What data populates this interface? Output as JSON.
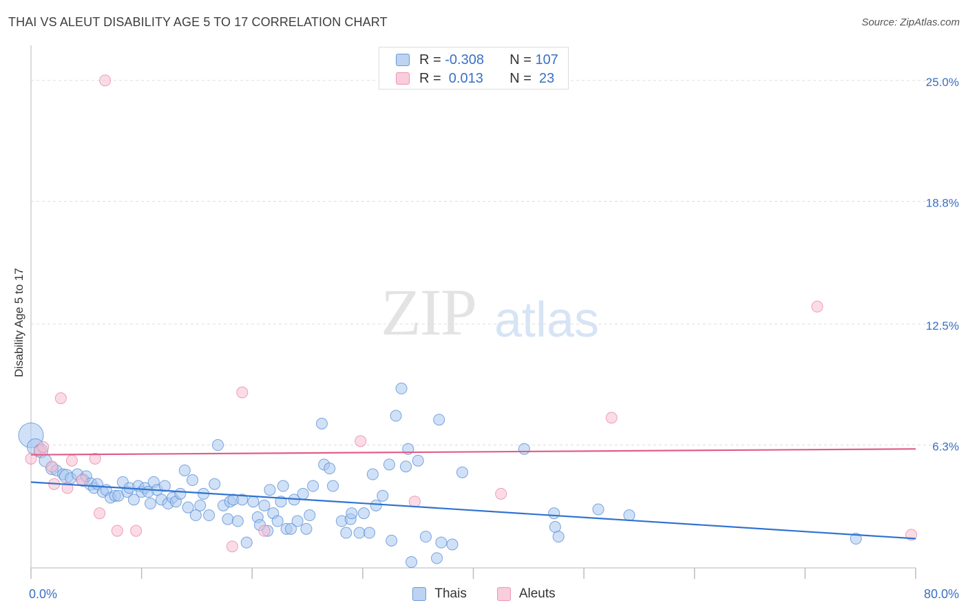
{
  "header": {
    "title": "THAI VS ALEUT DISABILITY AGE 5 TO 17 CORRELATION CHART",
    "source": "Source: ZipAtlas.com"
  },
  "watermark": {
    "zip": "ZIP",
    "atlas": "atlas"
  },
  "legend_top": {
    "rows": [
      {
        "r_label": "R =",
        "r_value": "-0.308",
        "n_label": "N =",
        "n_value": "107"
      },
      {
        "r_label": "R =",
        "r_value": " 0.013",
        "n_label": "N =",
        "n_value": " 23"
      }
    ]
  },
  "colors": {
    "thais_fill": "#a9c8f0",
    "thais_stroke": "#5b8fd6",
    "thais_line": "#2f72d0",
    "aleuts_fill": "#f7c0d2",
    "aleuts_stroke": "#e98aa8",
    "aleuts_line": "#e05d88",
    "tick_label": "#3a6fc4",
    "grid": "#dddddd"
  },
  "chart_data": {
    "type": "scatter",
    "title": "THAI VS ALEUT DISABILITY AGE 5 TO 17 CORRELATION CHART",
    "xlabel": "",
    "ylabel": "Disability Age 5 to 17",
    "xlim": [
      0,
      80
    ],
    "ylim": [
      0,
      26.3
    ],
    "x_tick_labels": [
      "0.0%",
      "80.0%"
    ],
    "y_ticks": [
      6.3,
      12.5,
      18.8,
      25.0
    ],
    "y_tick_labels": [
      "6.3%",
      "12.5%",
      "18.8%",
      "25.0%"
    ],
    "grid": true,
    "legend_position": "bottom",
    "series": [
      {
        "name": "Thais",
        "r": -0.308,
        "n": 107,
        "trend": {
          "x": [
            0,
            80
          ],
          "y": [
            4.4,
            1.5
          ]
        },
        "points": [
          [
            0,
            6.8,
            18
          ],
          [
            0.4,
            6.2,
            12
          ],
          [
            0.9,
            6,
            10
          ],
          [
            1.3,
            5.5,
            9
          ],
          [
            1.9,
            5.1,
            9
          ],
          [
            2.3,
            5,
            8
          ],
          [
            2.9,
            4.8,
            8
          ],
          [
            3.2,
            4.7,
            10
          ],
          [
            3.6,
            4.6,
            8
          ],
          [
            4.2,
            4.8,
            8
          ],
          [
            4.7,
            4.5,
            9
          ],
          [
            5,
            4.7,
            8
          ],
          [
            5.4,
            4.3,
            9
          ],
          [
            5.7,
            4.1,
            8
          ],
          [
            6,
            4.3,
            8
          ],
          [
            6.5,
            3.9,
            8
          ],
          [
            6.8,
            4,
            8
          ],
          [
            7.2,
            3.6,
            8
          ],
          [
            7.6,
            3.7,
            8
          ],
          [
            7.9,
            3.7,
            8
          ],
          [
            8.3,
            4.4,
            8
          ],
          [
            8.7,
            3.9,
            8
          ],
          [
            8.9,
            4.1,
            8
          ],
          [
            9.3,
            3.5,
            8
          ],
          [
            9.7,
            4.2,
            8
          ],
          [
            10,
            3.9,
            8
          ],
          [
            10.3,
            4.1,
            8
          ],
          [
            10.6,
            3.9,
            8
          ],
          [
            10.8,
            3.3,
            8
          ],
          [
            11.1,
            4.4,
            8
          ],
          [
            11.4,
            4,
            8
          ],
          [
            11.8,
            3.5,
            8
          ],
          [
            12.1,
            4.2,
            8
          ],
          [
            12.4,
            3.3,
            8
          ],
          [
            12.8,
            3.6,
            8
          ],
          [
            13.1,
            3.4,
            8
          ],
          [
            13.5,
            3.8,
            8
          ],
          [
            13.9,
            5,
            8
          ],
          [
            14.2,
            3.1,
            8
          ],
          [
            14.6,
            4.5,
            8
          ],
          [
            14.9,
            2.7,
            8
          ],
          [
            15.3,
            3.2,
            8
          ],
          [
            15.6,
            3.8,
            8
          ],
          [
            16.1,
            2.7,
            8
          ],
          [
            16.6,
            4.3,
            8
          ],
          [
            16.9,
            6.3,
            8
          ],
          [
            17.4,
            3.2,
            8
          ],
          [
            17.8,
            2.5,
            8
          ],
          [
            18,
            3.4,
            8
          ],
          [
            18.3,
            3.5,
            8
          ],
          [
            18.7,
            2.4,
            8
          ],
          [
            19.1,
            3.5,
            8
          ],
          [
            19.5,
            1.3,
            8
          ],
          [
            20.1,
            3.4,
            8
          ],
          [
            20.5,
            2.6,
            8
          ],
          [
            20.7,
            2.2,
            8
          ],
          [
            21.1,
            3.2,
            8
          ],
          [
            21.4,
            1.9,
            8
          ],
          [
            21.6,
            4,
            8
          ],
          [
            21.9,
            2.8,
            8
          ],
          [
            22.3,
            2.4,
            8
          ],
          [
            22.6,
            3.4,
            8
          ],
          [
            22.8,
            4.2,
            8
          ],
          [
            23.1,
            2,
            8
          ],
          [
            23.5,
            2,
            8
          ],
          [
            23.8,
            3.5,
            8
          ],
          [
            24.1,
            2.4,
            8
          ],
          [
            24.6,
            3.8,
            8
          ],
          [
            24.9,
            2,
            8
          ],
          [
            25.2,
            2.7,
            8
          ],
          [
            25.5,
            4.2,
            8
          ],
          [
            26.3,
            7.4,
            8
          ],
          [
            26.5,
            5.3,
            8
          ],
          [
            27,
            5.1,
            8
          ],
          [
            27.3,
            4.2,
            8
          ],
          [
            28.1,
            2.4,
            8
          ],
          [
            28.5,
            1.8,
            8
          ],
          [
            28.9,
            2.5,
            8
          ],
          [
            29,
            2.8,
            8
          ],
          [
            29.7,
            1.8,
            8
          ],
          [
            30.1,
            2.8,
            8
          ],
          [
            30.6,
            1.8,
            8
          ],
          [
            30.9,
            4.8,
            8
          ],
          [
            31.2,
            3.2,
            8
          ],
          [
            31.8,
            3.7,
            8
          ],
          [
            32.4,
            5.3,
            8
          ],
          [
            32.6,
            1.4,
            8
          ],
          [
            33,
            7.8,
            8
          ],
          [
            33.5,
            9.2,
            8
          ],
          [
            33.9,
            5.2,
            8
          ],
          [
            34.1,
            6.1,
            8
          ],
          [
            34.4,
            0.3,
            8
          ],
          [
            35,
            5.5,
            8
          ],
          [
            35.7,
            1.6,
            8
          ],
          [
            36.7,
            0.5,
            8
          ],
          [
            36.9,
            7.6,
            8
          ],
          [
            37.1,
            1.3,
            8
          ],
          [
            38.1,
            1.2,
            8
          ],
          [
            39,
            4.9,
            8
          ],
          [
            44.6,
            6.1,
            8
          ],
          [
            47.3,
            2.8,
            8
          ],
          [
            47.4,
            2.1,
            8
          ],
          [
            47.7,
            1.6,
            8
          ],
          [
            51.3,
            3,
            8
          ],
          [
            54.1,
            2.7,
            8
          ],
          [
            74.6,
            1.5,
            8
          ]
        ]
      },
      {
        "name": "Aleuts",
        "r": 0.013,
        "n": 23,
        "trend": {
          "x": [
            0,
            80
          ],
          "y": [
            5.8,
            6.1
          ]
        },
        "points": [
          [
            0,
            5.6,
            8
          ],
          [
            0.8,
            6,
            8
          ],
          [
            1.1,
            6.2,
            8
          ],
          [
            1.9,
            5.2,
            8
          ],
          [
            2.1,
            4.3,
            8
          ],
          [
            2.7,
            8.7,
            8
          ],
          [
            3.3,
            4.1,
            8
          ],
          [
            3.7,
            5.5,
            8
          ],
          [
            4.6,
            4.5,
            8
          ],
          [
            5.8,
            5.6,
            8
          ],
          [
            6.2,
            2.8,
            8
          ],
          [
            6.7,
            25,
            8
          ],
          [
            7.8,
            1.9,
            8
          ],
          [
            9.5,
            1.9,
            8
          ],
          [
            18.2,
            1.1,
            8
          ],
          [
            19.1,
            9,
            8
          ],
          [
            21.1,
            1.9,
            8
          ],
          [
            34.7,
            3.4,
            8
          ],
          [
            29.8,
            6.5,
            8
          ],
          [
            42.5,
            3.8,
            8
          ],
          [
            52.5,
            7.7,
            8
          ],
          [
            71.1,
            13.4,
            8
          ],
          [
            79.6,
            1.7,
            8
          ]
        ]
      }
    ]
  },
  "bottom_legend": {
    "thais": "Thais",
    "aleuts": "Aleuts"
  }
}
